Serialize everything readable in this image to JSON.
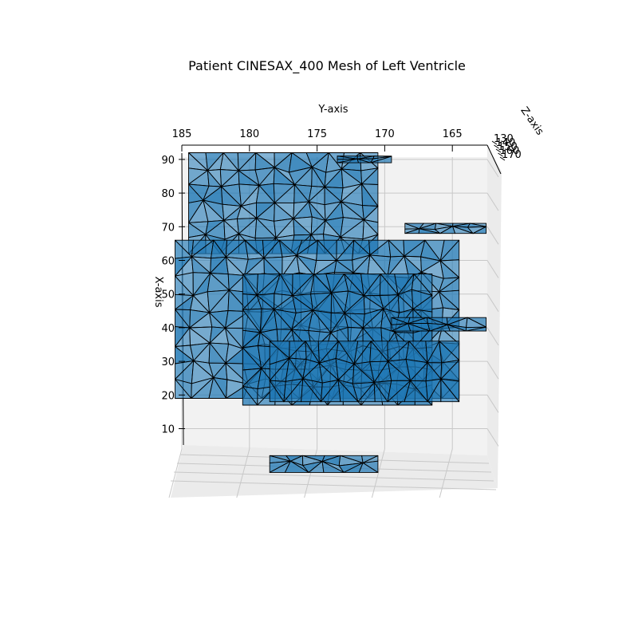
{
  "chart_data": {
    "type": "surface3d",
    "title": "Patient CINESAX_400 Mesh of Left Ventricle",
    "xlabel": "X-axis",
    "ylabel": "Y-axis",
    "zlabel": "Z-axis",
    "xticks": [
      10,
      20,
      30,
      40,
      50,
      60,
      70,
      80,
      90
    ],
    "yticks": [
      185,
      180,
      175,
      170,
      165
    ],
    "zticks": [
      130,
      140,
      150,
      160,
      170
    ],
    "xlim": [
      2,
      92
    ],
    "ylim": [
      185,
      161.5
    ],
    "grid": true,
    "pane_color": "#f2f2f2",
    "mesh_face_color": "#1f77b4",
    "mesh_edge_color": "#000000",
    "mesh_slabs": [
      {
        "x_range": [
          62,
          92
        ],
        "y_range": [
          184.5,
          170.5
        ]
      },
      {
        "x_range": [
          19,
          66
        ],
        "y_range": [
          185.5,
          164.5
        ]
      },
      {
        "x_range": [
          17,
          56
        ],
        "y_range": [
          180.5,
          166.5
        ]
      },
      {
        "x_range": [
          18,
          36
        ],
        "y_range": [
          178.5,
          164.5
        ]
      },
      {
        "x_range": [
          39,
          43
        ],
        "y_range": [
          169.5,
          162.5
        ]
      },
      {
        "x_range": [
          68,
          71
        ],
        "y_range": [
          168.5,
          162.5
        ]
      },
      {
        "x_range": [
          89,
          91
        ],
        "y_range": [
          173.5,
          169.5
        ]
      },
      {
        "x_range": [
          -3,
          2
        ],
        "y_range": [
          178.5,
          170.5
        ]
      }
    ]
  }
}
